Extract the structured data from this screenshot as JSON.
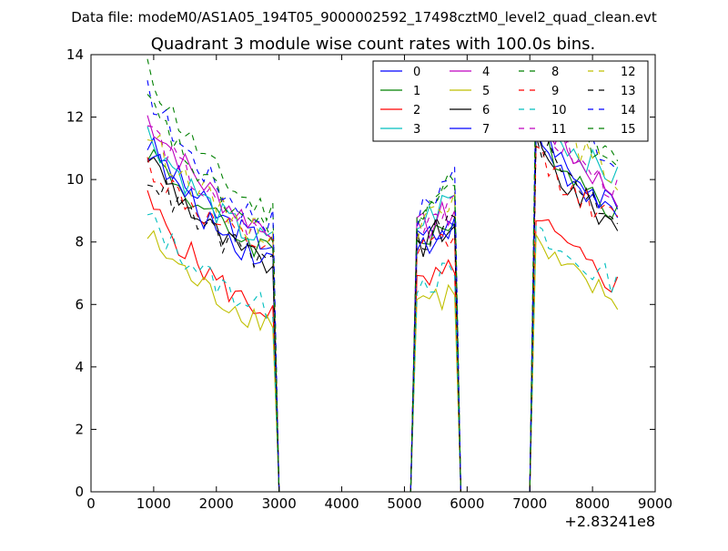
{
  "chart_data": {
    "type": "line",
    "suptitle": "Data file: modeM0/AS1A05_194T05_9000002592_17498cztM0_level2_quad_clean.evt",
    "title": "Quadrant 3 module wise count rates with 100.0s bins.",
    "xlabel": "",
    "ylabel": "",
    "x_offset_label": "+2.83241e8",
    "xlim": [
      0,
      9000
    ],
    "ylim": [
      0,
      14
    ],
    "x_ticks": [
      "0",
      "1000",
      "2000",
      "3000",
      "4000",
      "5000",
      "6000",
      "7000",
      "8000",
      "9000"
    ],
    "y_ticks": [
      "0",
      "2",
      "4",
      "6",
      "8",
      "10",
      "12",
      "14"
    ],
    "grid": false,
    "legend_position": "top-right",
    "segments": [
      {
        "x_start": 900,
        "x_end": 2900
      },
      {
        "x_start": 5200,
        "x_end": 5800
      },
      {
        "x_start": 7100,
        "x_end": 8400
      }
    ],
    "series": [
      {
        "name": "0",
        "color": "#0000ff",
        "dash": "solid",
        "levels": [
          11.2,
          8.0,
          8.0,
          8.5,
          11.5,
          9.0
        ]
      },
      {
        "name": "1",
        "color": "#008000",
        "dash": "solid",
        "levels": [
          11.0,
          7.8,
          8.2,
          8.6,
          11.8,
          9.0
        ]
      },
      {
        "name": "2",
        "color": "#ff0000",
        "dash": "solid",
        "levels": [
          9.3,
          5.8,
          6.5,
          7.0,
          9.0,
          6.6
        ]
      },
      {
        "name": "3",
        "color": "#00bfbf",
        "dash": "solid",
        "levels": [
          11.5,
          8.0,
          8.5,
          9.5,
          12.3,
          10.0
        ]
      },
      {
        "name": "4",
        "color": "#bf00bf",
        "dash": "solid",
        "levels": [
          12.0,
          8.5,
          8.3,
          9.0,
          12.5,
          9.5
        ]
      },
      {
        "name": "5",
        "color": "#bfbf00",
        "dash": "solid",
        "levels": [
          8.2,
          5.5,
          6.2,
          6.3,
          8.0,
          6.1
        ]
      },
      {
        "name": "6",
        "color": "#000000",
        "dash": "solid",
        "levels": [
          10.8,
          7.3,
          7.8,
          8.5,
          11.2,
          8.5
        ]
      },
      {
        "name": "7",
        "color": "#0000ff",
        "dash": "solid",
        "levels": [
          11.0,
          7.5,
          7.7,
          8.8,
          12.0,
          8.8
        ]
      },
      {
        "name": "8",
        "color": "#008000",
        "dash": "dashed",
        "levels": [
          13.5,
          9.0,
          9.0,
          9.8,
          13.6,
          10.5
        ]
      },
      {
        "name": "9",
        "color": "#ff0000",
        "dash": "dashed",
        "levels": [
          10.5,
          7.8,
          7.5,
          8.2,
          11.0,
          8.6
        ]
      },
      {
        "name": "10",
        "color": "#00bfbf",
        "dash": "dashed",
        "levels": [
          8.8,
          5.9,
          6.8,
          6.9,
          8.3,
          6.7
        ]
      },
      {
        "name": "11",
        "color": "#bf00bf",
        "dash": "dashed",
        "levels": [
          11.8,
          8.2,
          8.6,
          9.5,
          12.2,
          9.6
        ]
      },
      {
        "name": "12",
        "color": "#bfbf00",
        "dash": "dashed",
        "levels": [
          11.5,
          8.3,
          8.4,
          9.6,
          12.8,
          10.0
        ]
      },
      {
        "name": "13",
        "color": "#000000",
        "dash": "dashed",
        "levels": [
          10.2,
          7.4,
          7.9,
          8.8,
          11.5,
          8.8
        ]
      },
      {
        "name": "14",
        "color": "#0000ff",
        "dash": "dashed",
        "levels": [
          12.8,
          8.7,
          8.8,
          10.4,
          13.1,
          10.4
        ]
      },
      {
        "name": "15",
        "color": "#008000",
        "dash": "dashed",
        "levels": [
          12.5,
          8.4,
          8.6,
          9.9,
          13.4,
          10.4
        ]
      }
    ]
  }
}
